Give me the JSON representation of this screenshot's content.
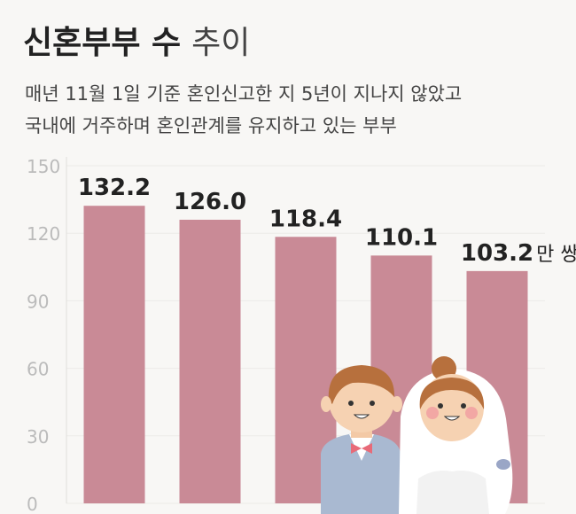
{
  "chart_data": {
    "type": "bar",
    "title": "신혼부부 수",
    "title_suffix": "추이",
    "subtitle": [
      "매년 11월 1일 기준 혼인신고한 지 5년이 지나지 않았고",
      "국내에 거주하며 혼인관계를 유지하고 있는 부부"
    ],
    "categories": [
      null,
      null,
      null,
      null,
      null
    ],
    "values": [
      132.2,
      126.0,
      118.4,
      110.1,
      103.2
    ],
    "value_labels": [
      "132.2",
      "126.0",
      "118.4",
      "110.1",
      "103.2"
    ],
    "unit": "만 쌍",
    "color": "#c98a96",
    "ylim": [
      0,
      150
    ],
    "yticks": [
      0,
      30,
      60,
      90,
      120,
      150
    ],
    "grid": true
  }
}
